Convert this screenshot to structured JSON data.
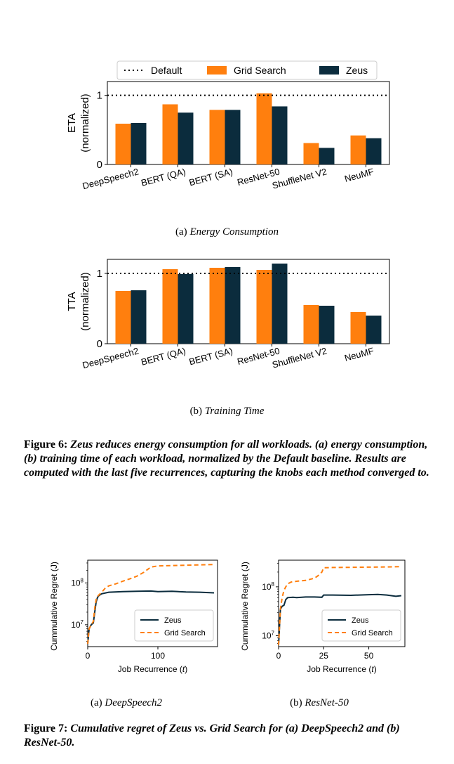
{
  "legend": {
    "default": "Default",
    "grid": "Grid Search",
    "zeus": "Zeus"
  },
  "colors": {
    "grid": "#ff7f0e",
    "zeus": "#0b2c3d"
  },
  "fig6": {
    "title_prefix": "Figure 6:",
    "text": "Zeus reduces energy consumption for all workloads. (a) energy consumption, (b) training time of each workload, normalized by the Default baseline. Results are computed with the last five recurrences, capturing the knobs each method converged to.",
    "sub_a_label": "(a)",
    "sub_a_name": "Energy Consumption",
    "sub_b_label": "(b)",
    "sub_b_name": "Training Time"
  },
  "fig7": {
    "title_prefix": "Figure 7:",
    "text": "Cumulative regret of Zeus vs. Grid Search for (a) DeepSpeech2 and (b) ResNet-50.",
    "sub_a_label": "(a)",
    "sub_a_name": "DeepSpeech2",
    "sub_b_label": "(b)",
    "sub_b_name": "ResNet-50"
  },
  "chart_data": [
    {
      "type": "bar",
      "ylabel": "ETA\n(normalized)",
      "categories": [
        "DeepSpeech2",
        "BERT (QA)",
        "BERT (SA)",
        "ResNet-50",
        "ShuffleNet V2",
        "NeuMF"
      ],
      "series": [
        {
          "name": "Grid Search",
          "values": [
            0.59,
            0.87,
            0.79,
            1.03,
            0.31,
            0.42
          ]
        },
        {
          "name": "Zeus",
          "values": [
            0.6,
            0.75,
            0.79,
            0.84,
            0.24,
            0.38
          ]
        }
      ],
      "reference_line": {
        "name": "Default",
        "value": 1.0
      },
      "ylim": [
        0,
        1.2
      ],
      "yticks": [
        0,
        1
      ],
      "legend": "top"
    },
    {
      "type": "bar",
      "ylabel": "TTA\n(normalized)",
      "categories": [
        "DeepSpeech2",
        "BERT (QA)",
        "BERT (SA)",
        "ResNet-50",
        "ShuffleNet V2",
        "NeuMF"
      ],
      "series": [
        {
          "name": "Grid Search",
          "values": [
            0.75,
            1.06,
            1.08,
            1.05,
            0.55,
            0.45
          ]
        },
        {
          "name": "Zeus",
          "values": [
            0.76,
            0.99,
            1.09,
            1.14,
            0.54,
            0.4
          ]
        }
      ],
      "reference_line": {
        "name": "Default",
        "value": 1.0
      },
      "ylim": [
        0,
        1.2
      ],
      "yticks": [
        0,
        1
      ]
    },
    {
      "type": "line",
      "xlabel": "Job Recurrence (t)",
      "ylabel": "Cummulative Regret (J)",
      "yscale": "log",
      "xlim": [
        0,
        185
      ],
      "ylim": [
        3000000,
        350000000
      ],
      "xticks": [
        0,
        100
      ],
      "yticks": [
        10000000,
        100000000
      ],
      "series": [
        {
          "name": "Zeus",
          "x": [
            0,
            2,
            5,
            8,
            10,
            12,
            14,
            16,
            20,
            30,
            50,
            70,
            90,
            100,
            120,
            140,
            160,
            180
          ],
          "y": [
            3500000,
            8000000,
            10000000,
            11000000,
            20000000,
            35000000,
            45000000,
            50000000,
            55000000,
            60000000,
            62000000,
            63000000,
            64000000,
            62000000,
            63000000,
            61000000,
            60000000,
            58000000
          ]
        },
        {
          "name": "Grid Search",
          "x": [
            0,
            2,
            5,
            8,
            10,
            12,
            15,
            20,
            25,
            30,
            40,
            50,
            60,
            70,
            80,
            90,
            100,
            120,
            140,
            160,
            180
          ],
          "y": [
            3500000,
            8000000,
            10000000,
            12000000,
            25000000,
            40000000,
            50000000,
            60000000,
            75000000,
            85000000,
            95000000,
            110000000,
            125000000,
            145000000,
            180000000,
            240000000,
            255000000,
            260000000,
            265000000,
            270000000,
            275000000
          ]
        }
      ],
      "legend": "lower-right"
    },
    {
      "type": "line",
      "xlabel": "Job Recurrence (t)",
      "ylabel": "Cummulative Regret (J)",
      "yscale": "log",
      "xlim": [
        0,
        70
      ],
      "ylim": [
        6000000,
        350000000
      ],
      "xticks": [
        0,
        25,
        50
      ],
      "yticks": [
        10000000,
        100000000
      ],
      "series": [
        {
          "name": "Zeus",
          "x": [
            0,
            1,
            2,
            3,
            4,
            5,
            8,
            10,
            15,
            20,
            24,
            25,
            30,
            40,
            50,
            55,
            60,
            65,
            68
          ],
          "y": [
            6500000,
            35000000,
            40000000,
            42000000,
            55000000,
            60000000,
            61000000,
            60000000,
            62000000,
            62000000,
            61000000,
            68000000,
            68000000,
            67000000,
            69000000,
            70000000,
            68000000,
            64000000,
            66000000
          ]
        },
        {
          "name": "Grid Search",
          "x": [
            0,
            1,
            2,
            3,
            4,
            5,
            7,
            10,
            15,
            20,
            22,
            24,
            25,
            30,
            40,
            50,
            60,
            68
          ],
          "y": [
            6500000,
            35000000,
            60000000,
            85000000,
            100000000,
            115000000,
            125000000,
            130000000,
            135000000,
            150000000,
            170000000,
            200000000,
            245000000,
            248000000,
            250000000,
            252000000,
            255000000,
            258000000
          ]
        }
      ],
      "legend": "lower-right"
    }
  ]
}
